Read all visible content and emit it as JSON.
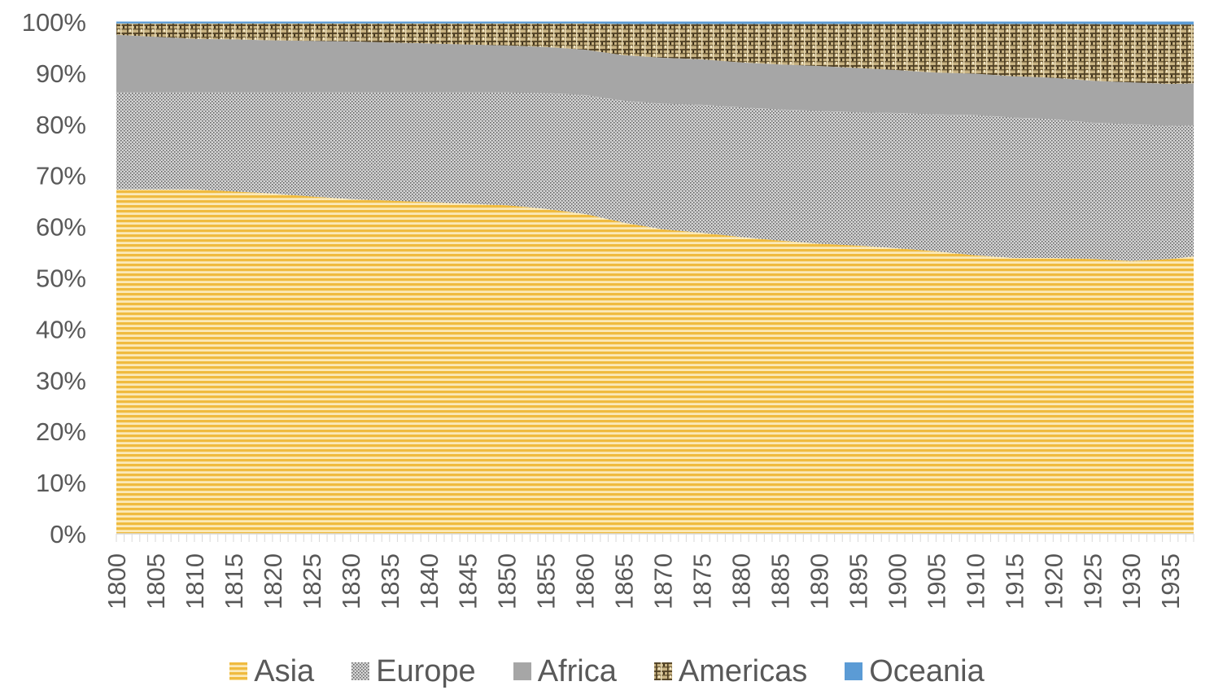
{
  "chart_data": {
    "type": "area",
    "stacked": "percent",
    "title": "",
    "xlabel": "",
    "ylabel": "",
    "ylim": [
      0,
      100
    ],
    "y_tick_labels": [
      "0%",
      "10%",
      "20%",
      "30%",
      "40%",
      "50%",
      "60%",
      "70%",
      "80%",
      "90%",
      "100%"
    ],
    "x": [
      1800,
      1805,
      1810,
      1815,
      1820,
      1825,
      1830,
      1835,
      1840,
      1845,
      1850,
      1855,
      1860,
      1865,
      1870,
      1875,
      1880,
      1885,
      1890,
      1895,
      1900,
      1905,
      1910,
      1915,
      1920,
      1925,
      1930,
      1935,
      1938
    ],
    "x_tick_labels": [
      "1800",
      "1805",
      "1810",
      "1815",
      "1820",
      "1825",
      "1830",
      "1835",
      "1840",
      "1845",
      "1850",
      "1855",
      "1860",
      "1865",
      "1870",
      "1875",
      "1880",
      "1885",
      "1890",
      "1895",
      "1900",
      "1905",
      "1910",
      "1915",
      "1920",
      "1925",
      "1930",
      "1935"
    ],
    "legend_position": "bottom",
    "grid": false,
    "series": [
      {
        "name": "Asia",
        "color": "#f2c14e",
        "pattern": "horizontal-lines",
        "values": [
          67.3,
          67.3,
          67.3,
          66.9,
          66.5,
          65.9,
          65.4,
          65.1,
          64.8,
          64.5,
          64.2,
          63.5,
          62.5,
          60.8,
          59.5,
          58.8,
          58.0,
          57.3,
          56.7,
          56.3,
          55.8,
          55.2,
          54.4,
          53.9,
          53.9,
          53.7,
          53.3,
          53.7,
          54.2
        ]
      },
      {
        "name": "Europe",
        "color": "#9a9a9a",
        "pattern": "dotted",
        "values": [
          18.9,
          18.9,
          18.9,
          19.3,
          19.7,
          20.3,
          20.8,
          21.1,
          21.4,
          21.7,
          22.0,
          22.6,
          23.2,
          23.8,
          24.5,
          25.0,
          25.3,
          25.6,
          25.9,
          26.0,
          26.4,
          26.7,
          27.4,
          27.4,
          27.1,
          26.6,
          26.7,
          26.0,
          25.6
        ]
      },
      {
        "name": "Africa",
        "color": "#a6a6a6",
        "pattern": "solid",
        "values": [
          11.3,
          10.9,
          10.5,
          10.4,
          10.2,
          10.1,
          10.0,
          9.8,
          9.6,
          9.4,
          9.2,
          9.0,
          8.9,
          8.9,
          9.0,
          8.9,
          8.8,
          8.8,
          8.8,
          8.7,
          8.4,
          8.2,
          8.1,
          8.1,
          8.1,
          8.2,
          8.2,
          8.2,
          8.2
        ]
      },
      {
        "name": "Americas",
        "color": "#8a7a55",
        "pattern": "burlap",
        "values": [
          2.2,
          2.6,
          3.0,
          3.1,
          3.3,
          3.4,
          3.5,
          3.7,
          3.9,
          4.1,
          4.3,
          4.6,
          5.1,
          6.1,
          6.6,
          6.9,
          7.5,
          7.9,
          8.2,
          8.6,
          9.0,
          9.5,
          9.7,
          10.2,
          10.5,
          11.1,
          11.3,
          11.6,
          11.5
        ]
      },
      {
        "name": "Oceania",
        "color": "#5b9bd5",
        "pattern": "solid",
        "values": [
          0.3,
          0.3,
          0.3,
          0.3,
          0.3,
          0.3,
          0.3,
          0.3,
          0.3,
          0.3,
          0.3,
          0.3,
          0.3,
          0.4,
          0.4,
          0.4,
          0.4,
          0.4,
          0.4,
          0.4,
          0.4,
          0.4,
          0.4,
          0.4,
          0.4,
          0.4,
          0.5,
          0.5,
          0.5
        ]
      }
    ]
  }
}
